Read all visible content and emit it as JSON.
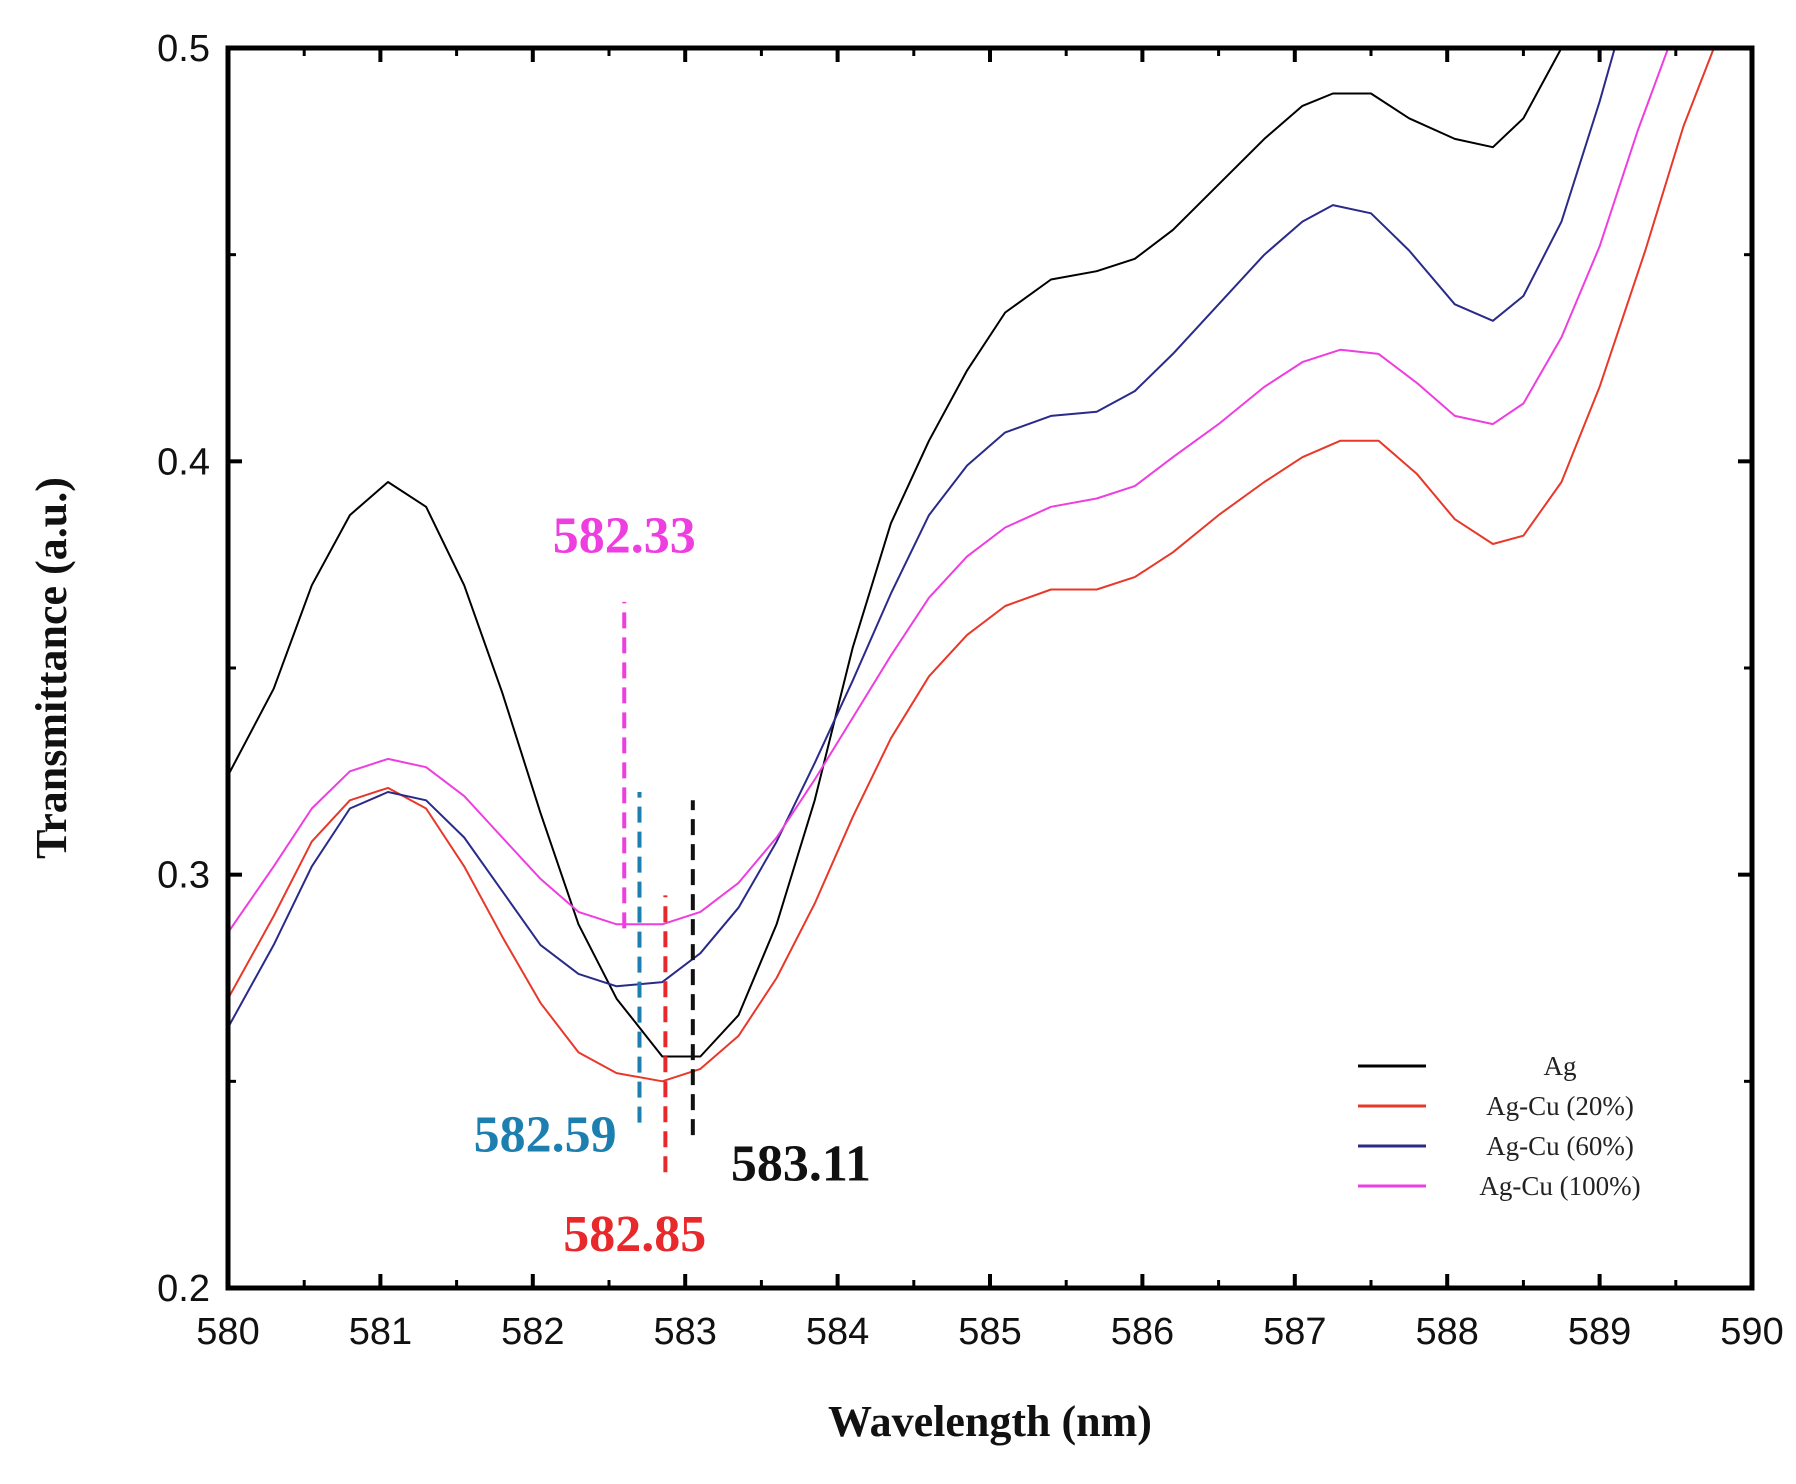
{
  "chart_data": {
    "type": "line",
    "title": "",
    "xlabel": "Wavelength (nm)",
    "ylabel": "Transmittance (a.u.)",
    "xlim": [
      580,
      590
    ],
    "ylim": [
      0.2,
      0.5
    ],
    "grid": false,
    "x_ticks": [
      "580",
      "581",
      "582",
      "583",
      "584",
      "585",
      "586",
      "587",
      "588",
      "589",
      "590"
    ],
    "y_ticks": [
      "0.2",
      "0.3",
      "0.4",
      "0.5"
    ],
    "legend_position": "bottom-right",
    "series": [
      {
        "name": "Ag",
        "color": "#000000",
        "points": [
          [
            580,
            0.324
          ],
          [
            580.3,
            0.345
          ],
          [
            580.55,
            0.37
          ],
          [
            580.8,
            0.387
          ],
          [
            581.05,
            0.395
          ],
          [
            581.3,
            0.389
          ],
          [
            581.55,
            0.37
          ],
          [
            581.8,
            0.344
          ],
          [
            582.05,
            0.315
          ],
          [
            582.3,
            0.288
          ],
          [
            582.55,
            0.27
          ],
          [
            582.7,
            0.263
          ],
          [
            582.85,
            0.256
          ],
          [
            583.1,
            0.256
          ],
          [
            583.35,
            0.266
          ],
          [
            583.6,
            0.288
          ],
          [
            583.85,
            0.318
          ],
          [
            584.1,
            0.355
          ],
          [
            584.35,
            0.385
          ],
          [
            584.6,
            0.405
          ],
          [
            584.85,
            0.422
          ],
          [
            585.1,
            0.436
          ],
          [
            585.4,
            0.444
          ],
          [
            585.7,
            0.446
          ],
          [
            585.95,
            0.449
          ],
          [
            586.2,
            0.456
          ],
          [
            586.5,
            0.467
          ],
          [
            586.8,
            0.478
          ],
          [
            587.05,
            0.486
          ],
          [
            587.25,
            0.489
          ],
          [
            587.5,
            0.489
          ],
          [
            587.75,
            0.483
          ],
          [
            588.05,
            0.478
          ],
          [
            588.3,
            0.476
          ],
          [
            588.5,
            0.483
          ],
          [
            588.75,
            0.5
          ]
        ]
      },
      {
        "name": "Ag-Cu (20%)",
        "color": "#e8382a",
        "points": [
          [
            580,
            0.27
          ],
          [
            580.3,
            0.29
          ],
          [
            580.55,
            0.308
          ],
          [
            580.8,
            0.318
          ],
          [
            581.05,
            0.321
          ],
          [
            581.3,
            0.316
          ],
          [
            581.55,
            0.302
          ],
          [
            581.8,
            0.285
          ],
          [
            582.05,
            0.269
          ],
          [
            582.3,
            0.257
          ],
          [
            582.55,
            0.252
          ],
          [
            582.85,
            0.25
          ],
          [
            583.1,
            0.253
          ],
          [
            583.35,
            0.261
          ],
          [
            583.6,
            0.275
          ],
          [
            583.85,
            0.293
          ],
          [
            584.1,
            0.314
          ],
          [
            584.35,
            0.333
          ],
          [
            584.6,
            0.348
          ],
          [
            584.85,
            0.358
          ],
          [
            585.1,
            0.365
          ],
          [
            585.4,
            0.369
          ],
          [
            585.7,
            0.369
          ],
          [
            585.95,
            0.372
          ],
          [
            586.2,
            0.378
          ],
          [
            586.5,
            0.387
          ],
          [
            586.8,
            0.395
          ],
          [
            587.05,
            0.401
          ],
          [
            587.3,
            0.405
          ],
          [
            587.55,
            0.405
          ],
          [
            587.8,
            0.397
          ],
          [
            588.05,
            0.386
          ],
          [
            588.3,
            0.38
          ],
          [
            588.5,
            0.382
          ],
          [
            588.75,
            0.395
          ],
          [
            589,
            0.418
          ],
          [
            589.3,
            0.451
          ],
          [
            589.55,
            0.481
          ],
          [
            589.75,
            0.5
          ]
        ]
      },
      {
        "name": "Ag-Cu (60%)",
        "color": "#2a2a8a",
        "points": [
          [
            580,
            0.263
          ],
          [
            580.3,
            0.283
          ],
          [
            580.55,
            0.302
          ],
          [
            580.8,
            0.316
          ],
          [
            581.05,
            0.32
          ],
          [
            581.3,
            0.318
          ],
          [
            581.55,
            0.309
          ],
          [
            581.8,
            0.296
          ],
          [
            582.05,
            0.283
          ],
          [
            582.3,
            0.276
          ],
          [
            582.55,
            0.273
          ],
          [
            582.85,
            0.274
          ],
          [
            583.1,
            0.281
          ],
          [
            583.35,
            0.292
          ],
          [
            583.6,
            0.308
          ],
          [
            583.85,
            0.327
          ],
          [
            584.1,
            0.347
          ],
          [
            584.35,
            0.368
          ],
          [
            584.6,
            0.387
          ],
          [
            584.85,
            0.399
          ],
          [
            585.1,
            0.407
          ],
          [
            585.4,
            0.411
          ],
          [
            585.7,
            0.412
          ],
          [
            585.95,
            0.417
          ],
          [
            586.2,
            0.426
          ],
          [
            586.5,
            0.438
          ],
          [
            586.8,
            0.45
          ],
          [
            587.05,
            0.458
          ],
          [
            587.25,
            0.462
          ],
          [
            587.5,
            0.46
          ],
          [
            587.75,
            0.451
          ],
          [
            588.05,
            0.438
          ],
          [
            588.3,
            0.434
          ],
          [
            588.5,
            0.44
          ],
          [
            588.75,
            0.458
          ],
          [
            589,
            0.487
          ],
          [
            589.1,
            0.5
          ]
        ]
      },
      {
        "name": "Ag-Cu (100%)",
        "color": "#ee3ee0",
        "points": [
          [
            580,
            0.286
          ],
          [
            580.3,
            0.302
          ],
          [
            580.55,
            0.316
          ],
          [
            580.8,
            0.325
          ],
          [
            581.05,
            0.328
          ],
          [
            581.3,
            0.326
          ],
          [
            581.55,
            0.319
          ],
          [
            581.8,
            0.309
          ],
          [
            582.05,
            0.299
          ],
          [
            582.3,
            0.291
          ],
          [
            582.55,
            0.288
          ],
          [
            582.85,
            0.288
          ],
          [
            583.1,
            0.291
          ],
          [
            583.35,
            0.298
          ],
          [
            583.6,
            0.309
          ],
          [
            583.85,
            0.323
          ],
          [
            584.1,
            0.338
          ],
          [
            584.35,
            0.353
          ],
          [
            584.6,
            0.367
          ],
          [
            584.85,
            0.377
          ],
          [
            585.1,
            0.384
          ],
          [
            585.4,
            0.389
          ],
          [
            585.7,
            0.391
          ],
          [
            585.95,
            0.394
          ],
          [
            586.2,
            0.401
          ],
          [
            586.5,
            0.409
          ],
          [
            586.8,
            0.418
          ],
          [
            587.05,
            0.424
          ],
          [
            587.3,
            0.427
          ],
          [
            587.55,
            0.426
          ],
          [
            587.8,
            0.419
          ],
          [
            588.05,
            0.411
          ],
          [
            588.3,
            0.409
          ],
          [
            588.5,
            0.414
          ],
          [
            588.75,
            0.43
          ],
          [
            589,
            0.452
          ],
          [
            589.25,
            0.48
          ],
          [
            589.45,
            0.5
          ]
        ]
      }
    ],
    "annotations": [
      {
        "label": "582.33",
        "color": "#ee3ee0",
        "x": 582.6,
        "y_from": 0.287,
        "y_to": 0.366,
        "label_x": 582.6,
        "label_y": 0.378,
        "anchor": "middle"
      },
      {
        "label": "582.59",
        "color": "#1c7fb0",
        "x": 582.7,
        "y_from": 0.24,
        "y_to": 0.32,
        "label_x": 582.55,
        "label_y": 0.233,
        "anchor": "end"
      },
      {
        "label": "582.85",
        "color": "#e8282a",
        "x": 582.87,
        "y_from": 0.228,
        "y_to": 0.295,
        "label_x": 582.2,
        "label_y": 0.209,
        "anchor": "start"
      },
      {
        "label": "583.11",
        "color": "#111111",
        "x": 583.05,
        "y_from": 0.237,
        "y_to": 0.318,
        "label_x": 583.3,
        "label_y": 0.226,
        "anchor": "start"
      }
    ]
  }
}
